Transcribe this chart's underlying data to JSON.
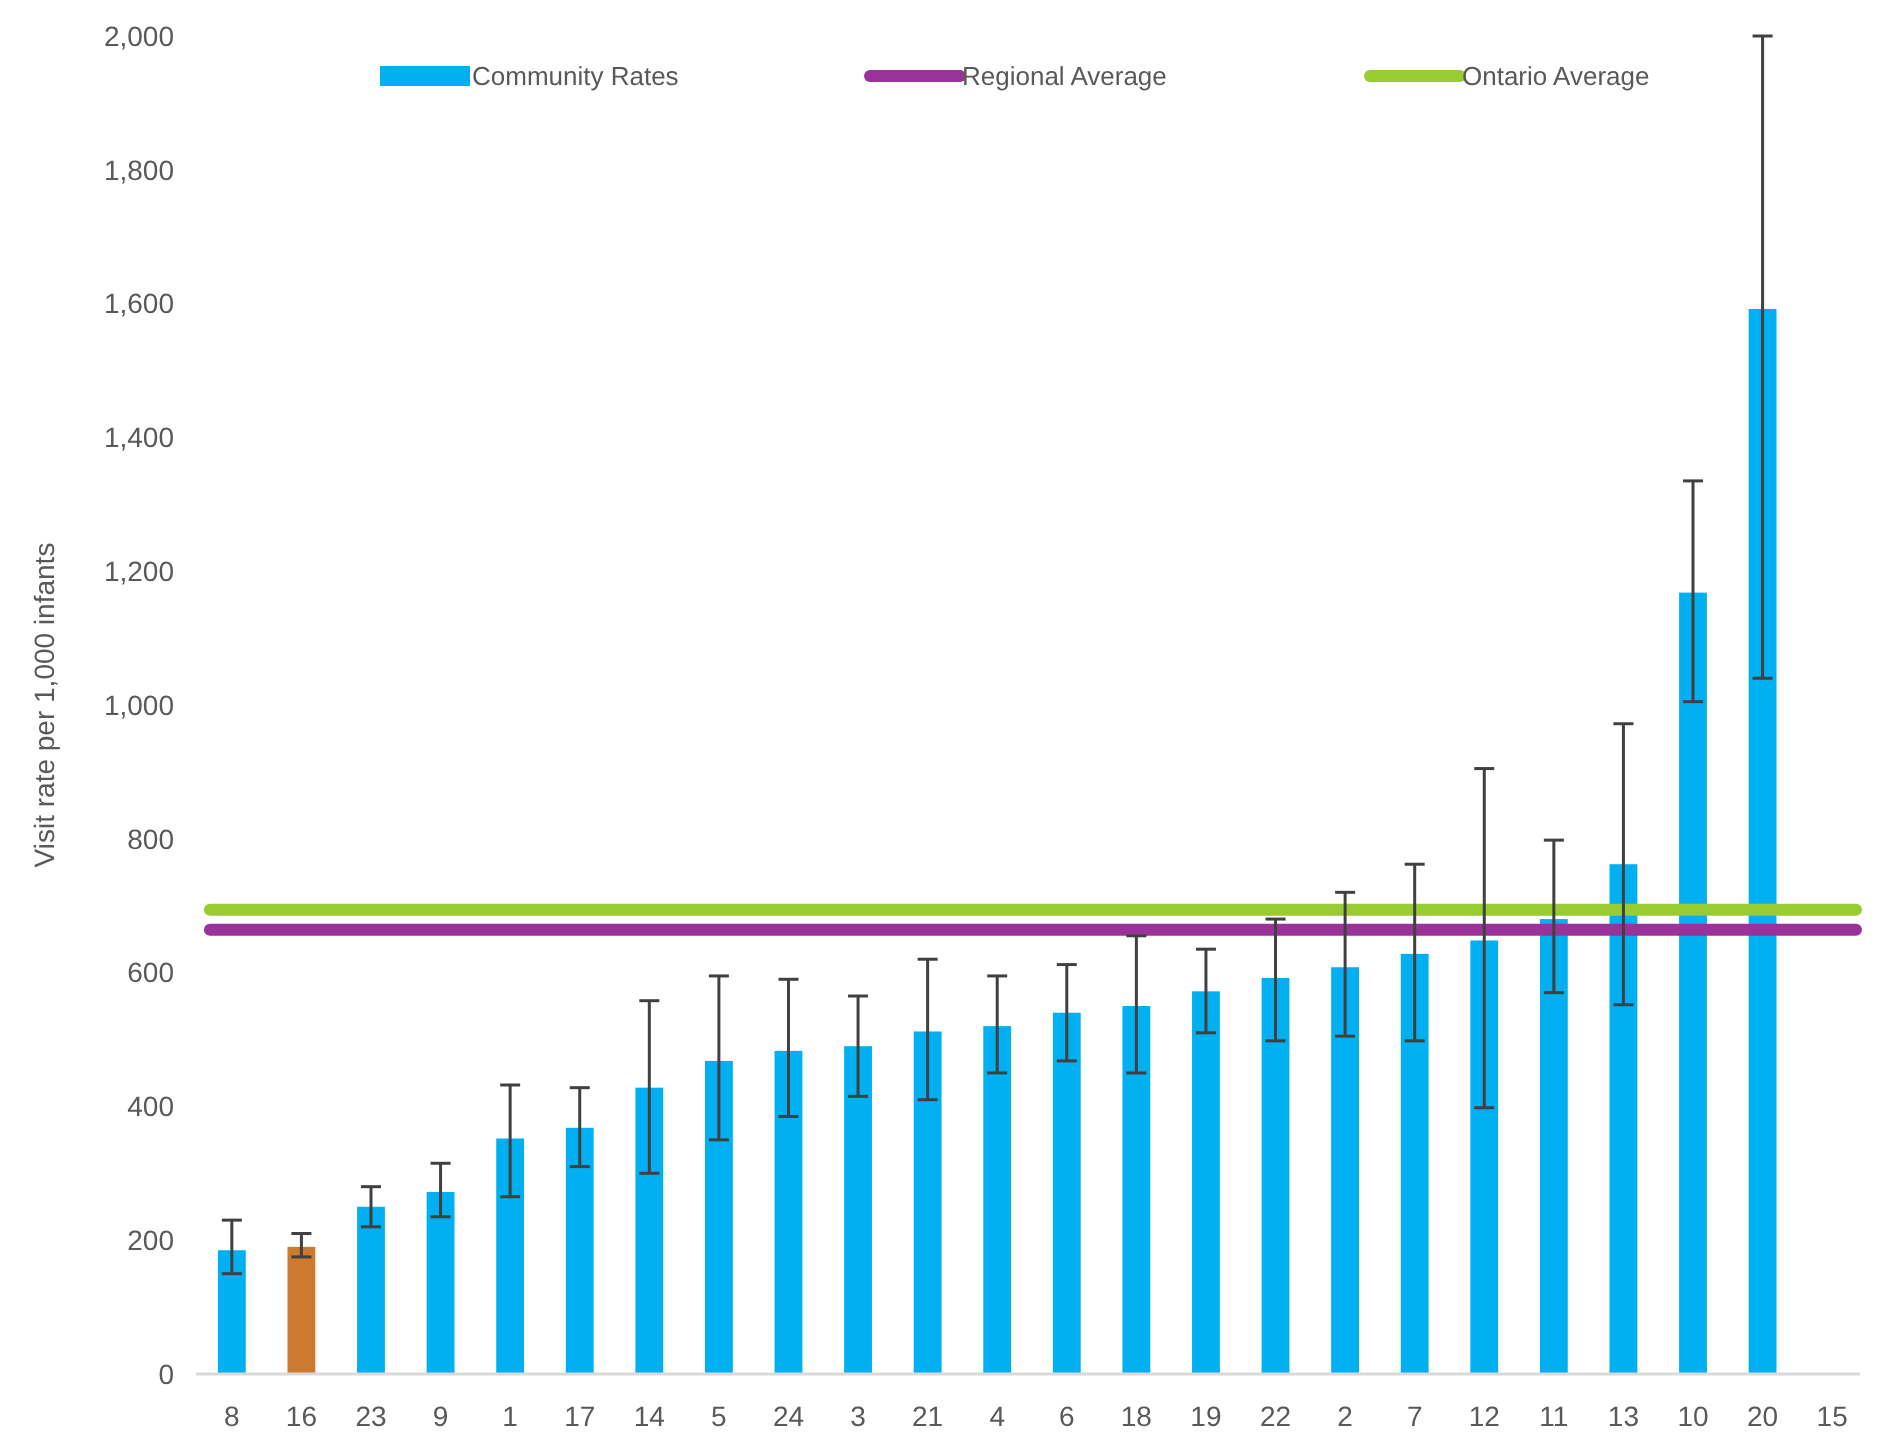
{
  "chart_data": {
    "type": "bar",
    "ylabel": "Visit rate per 1,000 infants",
    "categories": [
      "8",
      "16",
      "23",
      "9",
      "1",
      "17",
      "14",
      "5",
      "24",
      "3",
      "21",
      "4",
      "6",
      "18",
      "19",
      "22",
      "2",
      "7",
      "12",
      "11",
      "13",
      "10",
      "20",
      "15"
    ],
    "series": [
      {
        "name": "Community Rates",
        "color": "#00b0f0",
        "colors": [
          "#00b0f0",
          "#cc7a30",
          "#00b0f0",
          "#00b0f0",
          "#00b0f0",
          "#00b0f0",
          "#00b0f0",
          "#00b0f0",
          "#00b0f0",
          "#00b0f0",
          "#00b0f0",
          "#00b0f0",
          "#00b0f0",
          "#00b0f0",
          "#00b0f0",
          "#00b0f0",
          "#00b0f0",
          "#00b0f0",
          "#00b0f0",
          "#00b0f0",
          "#00b0f0",
          "#00b0f0",
          "#00b0f0",
          null
        ],
        "values": [
          185,
          190,
          250,
          272,
          352,
          368,
          428,
          468,
          483,
          490,
          512,
          520,
          540,
          550,
          572,
          592,
          608,
          628,
          648,
          680,
          762,
          1168,
          1592,
          null
        ],
        "errors": [
          [
            150,
            230
          ],
          [
            175,
            210
          ],
          [
            220,
            280
          ],
          [
            235,
            315
          ],
          [
            265,
            432
          ],
          [
            310,
            428
          ],
          [
            300,
            558
          ],
          [
            350,
            595
          ],
          [
            385,
            590
          ],
          [
            415,
            565
          ],
          [
            410,
            620
          ],
          [
            450,
            595
          ],
          [
            468,
            612
          ],
          [
            450,
            655
          ],
          [
            510,
            635
          ],
          [
            498,
            680
          ],
          [
            505,
            720
          ],
          [
            498,
            762
          ],
          [
            398,
            905
          ],
          [
            570,
            798
          ],
          [
            552,
            972
          ],
          [
            1005,
            1335
          ],
          [
            1040,
            2000
          ],
          null
        ]
      }
    ],
    "ref_lines": [
      {
        "axis": "y",
        "value": 664,
        "label": "Regional Average",
        "color": "#993399"
      },
      {
        "axis": "y",
        "value": 694,
        "label": "Ontario Average",
        "color": "#99cc33"
      }
    ],
    "ylim": [
      0,
      2000
    ],
    "yticks": [
      {
        "value": 0,
        "label": "0"
      },
      {
        "value": 200,
        "label": "200"
      },
      {
        "value": 400,
        "label": "400"
      },
      {
        "value": 600,
        "label": "600"
      },
      {
        "value": 800,
        "label": "800"
      },
      {
        "value": 1000,
        "label": "1,000"
      },
      {
        "value": 1200,
        "label": "1,200"
      },
      {
        "value": 1400,
        "label": "1,400"
      },
      {
        "value": 1600,
        "label": "1,600"
      },
      {
        "value": 1800,
        "label": "1,800"
      },
      {
        "value": 2000,
        "label": "2,000"
      }
    ],
    "legend": "top"
  }
}
